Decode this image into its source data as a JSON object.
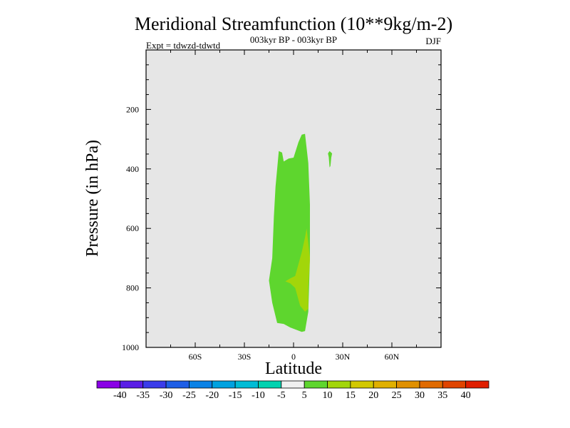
{
  "chart_data": {
    "type": "heatmap",
    "title": "Meridional Streamfunction (10**9kg/m-2)",
    "subtitle_center": "003kyr BP - 003kyr BP",
    "subtitle_left": "Expt = tdwzd-tdwtd",
    "subtitle_right": "DJF",
    "xlabel": "Latitude",
    "ylabel": "Pressure (in hPa)",
    "xlim": [
      -90,
      90
    ],
    "ylim": [
      1000,
      0
    ],
    "y_scale": "linear",
    "x_ticks": [
      {
        "value": -60,
        "label": "60S"
      },
      {
        "value": -30,
        "label": "30S"
      },
      {
        "value": 0,
        "label": "0"
      },
      {
        "value": 30,
        "label": "30N"
      },
      {
        "value": 60,
        "label": "60N"
      }
    ],
    "y_ticks": [
      {
        "value": 200,
        "label": "200"
      },
      {
        "value": 400,
        "label": "400"
      },
      {
        "value": 600,
        "label": "600"
      },
      {
        "value": 800,
        "label": "800"
      },
      {
        "value": 1000,
        "label": "1000"
      }
    ],
    "background_color": "#e6e6e6",
    "colorbar": {
      "levels": [
        "-40",
        "-35",
        "-30",
        "-25",
        "-20",
        "-15",
        "-10",
        "-5",
        "5",
        "10",
        "15",
        "20",
        "25",
        "30",
        "35",
        "40"
      ],
      "colors": [
        "#8a00e6",
        "#5a1ee6",
        "#3a3cea",
        "#1e5ee6",
        "#0a82e6",
        "#00a2e0",
        "#00bcd6",
        "#00d2b0",
        "#f0f0f0",
        "#5ed62e",
        "#a2d60a",
        "#d2c800",
        "#e0b000",
        "#e09000",
        "#e06a00",
        "#e04400",
        "#e01e00"
      ]
    },
    "contours": [
      {
        "name": "5 to 10",
        "color": "#5ed62e",
        "polygon": [
          [
            7,
            282
          ],
          [
            9,
            380
          ],
          [
            10,
            520
          ],
          [
            10,
            700
          ],
          [
            9,
            880
          ],
          [
            7,
            945
          ],
          [
            5,
            948
          ],
          [
            -2,
            933
          ],
          [
            -6,
            921
          ],
          [
            -10,
            918
          ],
          [
            -13,
            850
          ],
          [
            -15,
            775
          ],
          [
            -13,
            700
          ],
          [
            -12,
            560
          ],
          [
            -11,
            460
          ],
          [
            -9,
            340
          ],
          [
            -7,
            345
          ],
          [
            -6,
            375
          ],
          [
            -3,
            365
          ],
          [
            0,
            362
          ],
          [
            3,
            310
          ],
          [
            5,
            285
          ]
        ]
      },
      {
        "name": "10 to 15",
        "color": "#a2d60a",
        "polygon": [
          [
            8,
            600
          ],
          [
            10,
            700
          ],
          [
            9,
            800
          ],
          [
            9,
            870
          ],
          [
            7,
            880
          ],
          [
            4,
            860
          ],
          [
            2,
            820
          ],
          [
            1,
            800
          ],
          [
            -2,
            785
          ],
          [
            -5,
            778
          ],
          [
            -2,
            768
          ],
          [
            1,
            760
          ],
          [
            3,
            720
          ],
          [
            5,
            680
          ],
          [
            7,
            630
          ]
        ]
      },
      {
        "name": "5 to 10",
        "color": "#5ed62e",
        "polygon": [
          [
            22,
            340
          ],
          [
            23.5,
            348
          ],
          [
            23,
            362
          ],
          [
            22.5,
            390
          ],
          [
            22,
            395
          ],
          [
            21.5,
            360
          ],
          [
            21,
            348
          ]
        ]
      }
    ]
  }
}
